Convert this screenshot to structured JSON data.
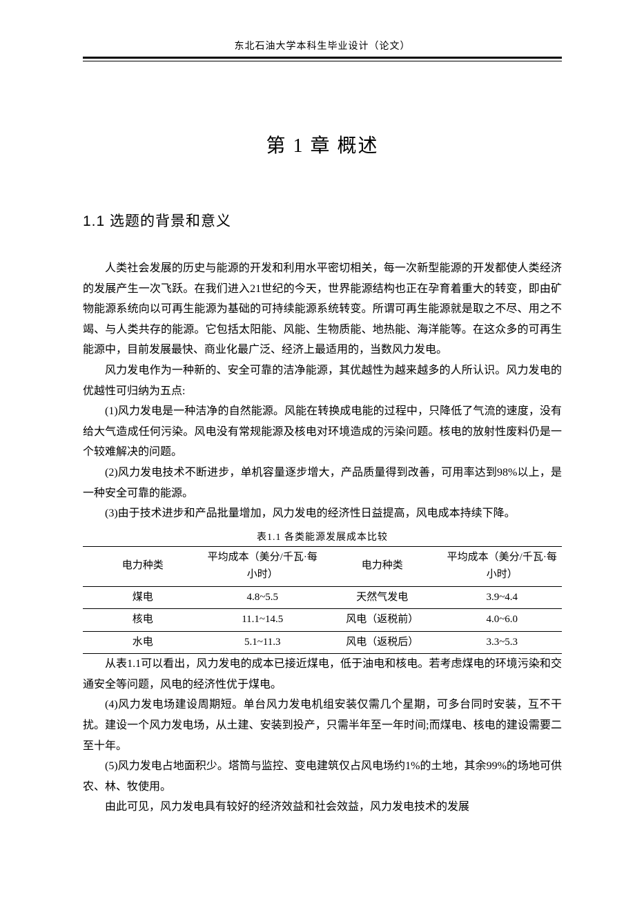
{
  "header": {
    "running_head": "东北石油大学本科生毕业设计（论文）"
  },
  "chapter": {
    "title": "第 1 章  概述"
  },
  "section": {
    "number_title": "1.1 选题的背景和意义"
  },
  "paragraphs": {
    "p1": "人类社会发展的历史与能源的开发和利用水平密切相关，每一次新型能源的开发都使人类经济的发展产生一次飞跃。在我们进入21世纪的今天，世界能源结构也正在孕育着重大的转变，即由矿物能源系统向以可再生能源为基础的可持续能源系统转变。所谓可再生能源就是取之不尽、用之不竭、与人类共存的能源。它包括太阳能、风能、生物质能、地热能、海洋能等。在这众多的可再生能源中，目前发展最快、商业化最广泛、经济上最适用的，当数风力发电。",
    "p2": "风力发电作为一种新的、安全可靠的洁净能源，其优越性为越来越多的人所认识。风力发电的优越性可归纳为五点:",
    "p3": "(1)风力发电是一种洁净的自然能源。风能在转换成电能的过程中，只降低了气流的速度，没有给大气造成任何污染。风电没有常规能源及核电对环境造成的污染问题。核电的放射性废料仍是一个较难解决的问题。",
    "p4": "(2)风力发电技术不断进步，单机容量逐步增大，产品质量得到改善，可用率达到98%以上，是一种安全可靠的能源。",
    "p5": "(3)由于技术进步和产品批量增加，风力发电的经济性日益提高，风电成本持续下降。",
    "p6": "从表1.1可以看出，风力发电的成本已接近煤电，低于油电和核电。若考虑煤电的环境污染和交通安全等问题，风电的经济性优于煤电。",
    "p7": "(4)风力发电场建设周期短。单台风力发电机组安装仅需几个星期，可多台同时安装，互不干扰。建设一个风力发电场，从土建、安装到投产，只需半年至一年时间;而煤电、核电的建设需要二至十年。",
    "p8": "(5)风力发电占地面积少。塔筒与监控、变电建筑仅占风电场约1%的土地，其余99%的场地可供农、林、牧使用。",
    "p9": "由此可见，风力发电具有较好的经济效益和社会效益，风力发电技术的发展"
  },
  "table": {
    "caption": "表1.1  各类能源发展成本比较",
    "type": "table",
    "columns": [
      "电力种类",
      "平均成本（美分/千瓦·每小时）",
      "电力种类",
      "平均成本（美分/千瓦·每小时）"
    ],
    "header_cells": {
      "c0": "电力种类",
      "c1": "平均成本（美分/千瓦·每小时）",
      "c2": "电力种类",
      "c3": "平均成本（美分/千瓦·每小时）"
    },
    "rows": [
      {
        "c0": "煤电",
        "c1": "4.8~5.5",
        "c2": "天然气发电",
        "c3": "3.9~4.4"
      },
      {
        "c0": "核电",
        "c1": "11.1~14.5",
        "c2": "风电（返税前）",
        "c3": "4.0~6.0"
      },
      {
        "c0": "水电",
        "c1": "5.1~11.3",
        "c2": "风电（返税后）",
        "c3": "3.3~5.3"
      }
    ],
    "border_color": "#000000",
    "font_size_pt": 11
  }
}
